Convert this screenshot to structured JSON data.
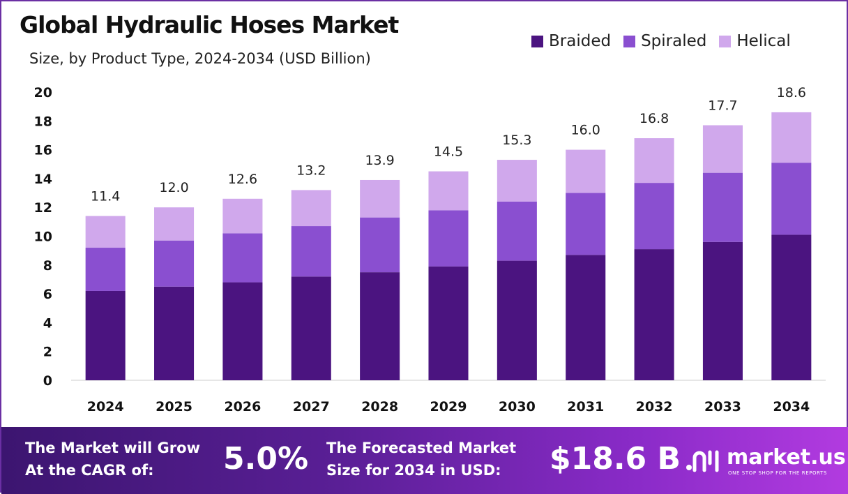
{
  "header": {
    "title": "Global Hydraulic Hoses Market",
    "subtitle": "Size, by Product Type, 2024-2034 (USD Billion)"
  },
  "legend": {
    "items": [
      {
        "label": "Braided",
        "color": "#4b1480"
      },
      {
        "label": "Spiraled",
        "color": "#8a4fd0"
      },
      {
        "label": "Helical",
        "color": "#d0a8ec"
      }
    ]
  },
  "chart_data": {
    "type": "bar",
    "stacked": true,
    "title": "Global Hydraulic Hoses Market",
    "subtitle": "Size, by Product Type, 2024-2034 (USD Billion)",
    "categories": [
      "2024",
      "2025",
      "2026",
      "2027",
      "2028",
      "2029",
      "2030",
      "2031",
      "2032",
      "2033",
      "2034"
    ],
    "series": [
      {
        "name": "Braided",
        "color": "#4b1480",
        "values": [
          6.2,
          6.5,
          6.8,
          7.2,
          7.5,
          7.9,
          8.3,
          8.7,
          9.1,
          9.6,
          10.1
        ]
      },
      {
        "name": "Spiraled",
        "color": "#8a4fd0",
        "values": [
          3.0,
          3.2,
          3.4,
          3.5,
          3.8,
          3.9,
          4.1,
          4.3,
          4.6,
          4.8,
          5.0
        ]
      },
      {
        "name": "Helical",
        "color": "#d0a8ec",
        "values": [
          2.2,
          2.3,
          2.4,
          2.5,
          2.6,
          2.7,
          2.9,
          3.0,
          3.1,
          3.3,
          3.5
        ]
      }
    ],
    "totals": [
      "11.4",
      "12.0",
      "12.6",
      "13.2",
      "13.9",
      "14.5",
      "15.3",
      "16.0",
      "16.8",
      "17.7",
      "18.6"
    ],
    "yticks": [
      "0",
      "2",
      "4",
      "6",
      "8",
      "10",
      "12",
      "14",
      "16",
      "18",
      "20"
    ],
    "ylim": [
      0,
      20
    ],
    "xlabel": "",
    "ylabel": "",
    "grid": false,
    "legend_position": "top-right"
  },
  "footer": {
    "cagr_label_line1": "The Market will Grow",
    "cagr_label_line2": "At the CAGR of:",
    "cagr_value": "5.0%",
    "forecast_label_line1": "The Forecasted Market",
    "forecast_label_line2": "Size for 2034 in USD:",
    "forecast_value": "$18.6 B",
    "brand_name": "market.us",
    "brand_tagline": "ONE STOP SHOP FOR THE REPORTS"
  }
}
